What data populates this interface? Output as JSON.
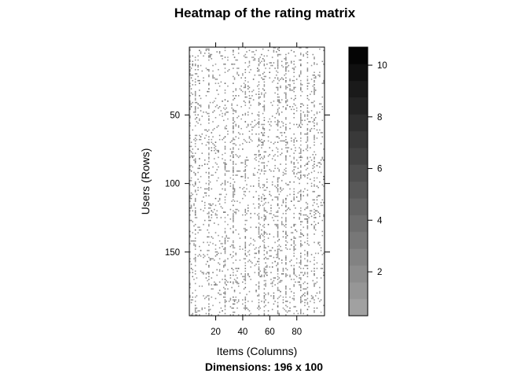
{
  "chart_data": {
    "type": "heatmap",
    "title": "Heatmap of the rating matrix",
    "subtitle": "Dimensions: 196 x 100",
    "xlabel": "Items (Columns)",
    "ylabel": "Users (Rows)",
    "n_rows": 196,
    "n_cols": 100,
    "xlim": [
      1,
      100
    ],
    "ylim": [
      1,
      196
    ],
    "y_reversed": true,
    "x_ticks": [
      20,
      40,
      60,
      80
    ],
    "y_ticks": [
      50,
      100,
      150
    ],
    "colorbar": {
      "range": [
        0.3,
        10.7
      ],
      "ticks": [
        2,
        4,
        6,
        8,
        10
      ],
      "levels": 16,
      "low_color": "#a6a6a6",
      "high_color": "#000000"
    },
    "value_range": [
      1,
      10
    ],
    "dense_columns": [
      5,
      15,
      27,
      33,
      42,
      52,
      56,
      66,
      72,
      78,
      83,
      88,
      93
    ],
    "colors": {
      "background": "#ffffff",
      "axis": "#000000",
      "cell": "#a9a9a9"
    }
  }
}
